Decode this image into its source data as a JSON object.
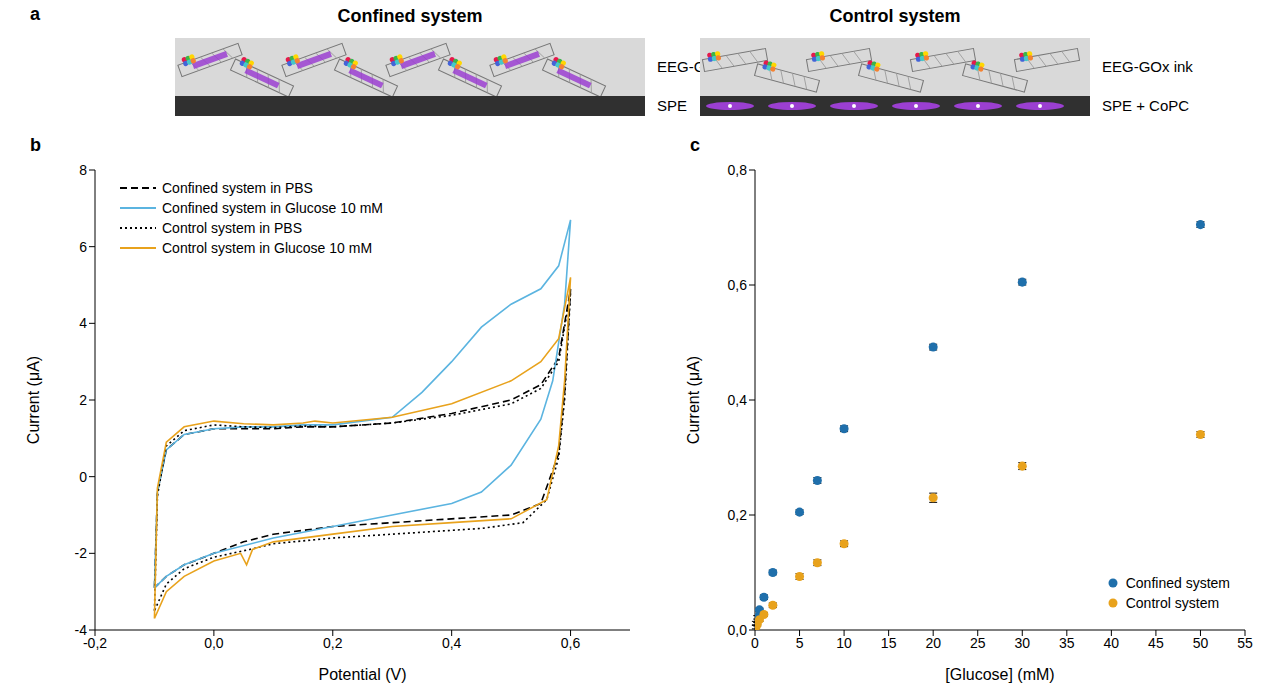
{
  "diagram": {
    "panel": "a",
    "systems": [
      {
        "title": "Confined system",
        "ink": "EEG-GOx-CoPc ink",
        "electrode": "SPE"
      },
      {
        "title": "Control system",
        "ink": "EEG-GOx ink",
        "electrode": "SPE + CoPC"
      }
    ]
  },
  "chart_data": [
    {
      "panel": "b",
      "type": "line",
      "x_label": "Potential (V)",
      "y_label": "Current (μA)",
      "xlim": [
        -0.2,
        0.7
      ],
      "xticks": [
        {
          "value": -0.2,
          "label": "-0,2"
        },
        {
          "value": 0,
          "label": "0,0"
        },
        {
          "value": 0.2,
          "label": "0,2"
        },
        {
          "value": 0.4,
          "label": "0,4"
        },
        {
          "value": 0.6,
          "label": "0,6"
        }
      ],
      "ylim": [
        -4,
        8
      ],
      "yticks": [
        -4,
        -2,
        0,
        2,
        4,
        6,
        8
      ],
      "legend": "upper left",
      "series": [
        {
          "name": "Confined system in PBS",
          "color": "#000000",
          "line_style": "dashed",
          "x": [
            -0.1,
            -0.095,
            -0.08,
            -0.05,
            0,
            0.05,
            0.1,
            0.15,
            0.2,
            0.3,
            0.4,
            0.5,
            0.55,
            0.58,
            0.6,
            0.59,
            0.58,
            0.55,
            0.5,
            0.4,
            0.3,
            0.2,
            0.1,
            0.05,
            0,
            -0.05,
            -0.08,
            -0.1,
            -0.1
          ],
          "values": [
            -2.9,
            -0.4,
            0.7,
            1.1,
            1.25,
            1.25,
            1.25,
            1.3,
            1.3,
            1.4,
            1.65,
            2.0,
            2.4,
            3.1,
            4.9,
            2.2,
            0.6,
            -0.7,
            -1.0,
            -1.1,
            -1.2,
            -1.3,
            -1.5,
            -1.7,
            -2.0,
            -2.3,
            -2.6,
            -2.9,
            -2.9
          ]
        },
        {
          "name": "Confined system in Glucose 10 mM",
          "color": "#5bb4e0",
          "line_style": "solid",
          "x": [
            -0.1,
            -0.095,
            -0.08,
            -0.05,
            0,
            0.05,
            0.1,
            0.15,
            0.2,
            0.3,
            0.35,
            0.4,
            0.45,
            0.5,
            0.55,
            0.58,
            0.6,
            0.59,
            0.57,
            0.55,
            0.5,
            0.45,
            0.4,
            0.3,
            0.2,
            0.1,
            0,
            -0.05,
            -0.08,
            -0.1
          ],
          "values": [
            -2.9,
            -0.4,
            0.7,
            1.1,
            1.25,
            1.3,
            1.3,
            1.35,
            1.35,
            1.55,
            2.2,
            3.0,
            3.9,
            4.5,
            4.9,
            5.5,
            6.7,
            4.5,
            2.5,
            1.5,
            0.3,
            -0.4,
            -0.7,
            -1.0,
            -1.3,
            -1.6,
            -2.0,
            -2.3,
            -2.6,
            -2.9
          ]
        },
        {
          "name": "Control system in PBS",
          "color": "#000000",
          "line_style": "dotted",
          "x": [
            -0.1,
            -0.095,
            -0.08,
            -0.05,
            0,
            0.05,
            0.1,
            0.15,
            0.2,
            0.3,
            0.4,
            0.5,
            0.55,
            0.58,
            0.6,
            0.59,
            0.58,
            0.56,
            0.52,
            0.45,
            0.4,
            0.3,
            0.2,
            0.1,
            0.06,
            0,
            -0.05,
            -0.08,
            -0.1
          ],
          "values": [
            -3.5,
            -0.5,
            0.8,
            1.2,
            1.35,
            1.3,
            1.28,
            1.32,
            1.3,
            1.4,
            1.6,
            1.9,
            2.3,
            3.0,
            4.8,
            2.0,
            0.5,
            -0.6,
            -1.2,
            -1.35,
            -1.4,
            -1.5,
            -1.6,
            -1.75,
            -1.9,
            -2.1,
            -2.4,
            -2.8,
            -3.5
          ]
        },
        {
          "name": "Control system in Glucose 10 mM",
          "color": "#e8a21c",
          "line_style": "solid",
          "x": [
            -0.1,
            -0.095,
            -0.08,
            -0.05,
            0,
            0.05,
            0.1,
            0.15,
            0.17,
            0.2,
            0.3,
            0.4,
            0.5,
            0.55,
            0.58,
            0.6,
            0.59,
            0.58,
            0.56,
            0.5,
            0.4,
            0.3,
            0.2,
            0.1,
            0.065,
            0.055,
            0.045,
            0,
            -0.05,
            -0.08,
            -0.1
          ],
          "values": [
            -3.7,
            -0.3,
            0.9,
            1.3,
            1.45,
            1.38,
            1.35,
            1.4,
            1.45,
            1.4,
            1.55,
            1.9,
            2.5,
            3.0,
            3.6,
            5.2,
            2.5,
            0.8,
            -0.6,
            -1.1,
            -1.2,
            -1.3,
            -1.5,
            -1.7,
            -1.9,
            -2.3,
            -2.0,
            -2.2,
            -2.6,
            -3.0,
            -3.7
          ]
        }
      ]
    },
    {
      "panel": "c",
      "type": "scatter",
      "x_label": "[Glucose] (mM)",
      "y_label": "Current (μA)",
      "xlim": [
        0,
        55
      ],
      "xticks": [
        0,
        5,
        10,
        15,
        20,
        25,
        30,
        35,
        40,
        45,
        50,
        55
      ],
      "ylim": [
        0,
        0.8
      ],
      "yticks": [
        {
          "value": 0,
          "label": "0,0"
        },
        {
          "value": 0.2,
          "label": "0,2"
        },
        {
          "value": 0.4,
          "label": "0,4"
        },
        {
          "value": 0.6,
          "label": "0,6"
        },
        {
          "value": 0.8,
          "label": "0,8"
        }
      ],
      "legend": "lower right",
      "series": [
        {
          "name": "Confined system",
          "color": "#1f6fab",
          "marker": "circle",
          "x": [
            0.1,
            0.25,
            0.5,
            1,
            2,
            5,
            7,
            10,
            20,
            30,
            50
          ],
          "values": [
            0.012,
            0.022,
            0.035,
            0.057,
            0.1,
            0.205,
            0.26,
            0.35,
            0.492,
            0.605,
            0.705
          ],
          "errors": [
            0.003,
            0.003,
            0.003,
            0.004,
            0.004,
            0.004,
            0.005,
            0.005,
            0.005,
            0.005,
            0.005
          ]
        },
        {
          "name": "Control system",
          "color": "#e8a21c",
          "marker": "circle",
          "x": [
            0.1,
            0.25,
            0.5,
            1,
            2,
            5,
            7,
            10,
            20,
            30,
            50
          ],
          "values": [
            0.005,
            0.01,
            0.018,
            0.027,
            0.043,
            0.093,
            0.117,
            0.15,
            0.23,
            0.285,
            0.34
          ],
          "errors": [
            0.003,
            0.003,
            0.003,
            0.003,
            0.004,
            0.005,
            0.005,
            0.005,
            0.008,
            0.006,
            0.005
          ]
        }
      ]
    }
  ]
}
